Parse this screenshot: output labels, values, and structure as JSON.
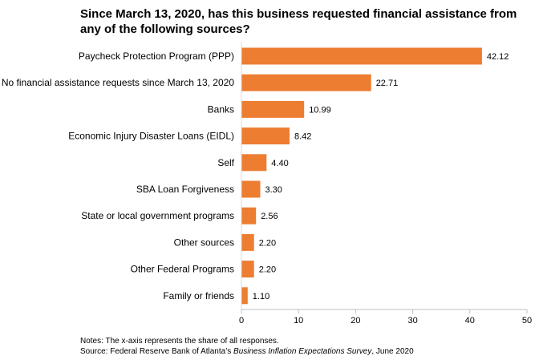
{
  "chart_data": {
    "type": "bar",
    "orientation": "horizontal",
    "title": "Since March 13, 2020, has this business requested financial assistance from any of the following sources?",
    "categories": [
      "Paycheck Protection Program (PPP)",
      "No financial assistance requests since March 13, 2020",
      "Banks",
      "Economic Injury Disaster Loans (EIDL)",
      "Self",
      "SBA Loan Forgiveness",
      "State or local government programs",
      "Other sources",
      "Other Federal Programs",
      "Family or friends"
    ],
    "values": [
      42.12,
      22.71,
      10.99,
      8.42,
      4.4,
      3.3,
      2.56,
      2.2,
      2.2,
      1.1
    ],
    "value_labels": [
      "42.12",
      "22.71",
      "10.99",
      "8.42",
      "4.40",
      "3.30",
      "2.56",
      "2.20",
      "2.20",
      "1.10"
    ],
    "xlim": [
      0,
      50
    ],
    "xticks": [
      "0",
      "10",
      "20",
      "30",
      "40",
      "50"
    ],
    "xlabel": "",
    "ylabel": "",
    "grid": false,
    "bar_color": "#ED7D31"
  },
  "notes": {
    "line1": "Notes: The x-axis represents the share of all responses.",
    "source_prefix": "Source: Federal Reserve Bank of Atlanta’s ",
    "source_title": "Business Inflation Expectations Survey",
    "source_suffix": ", June 2020"
  }
}
